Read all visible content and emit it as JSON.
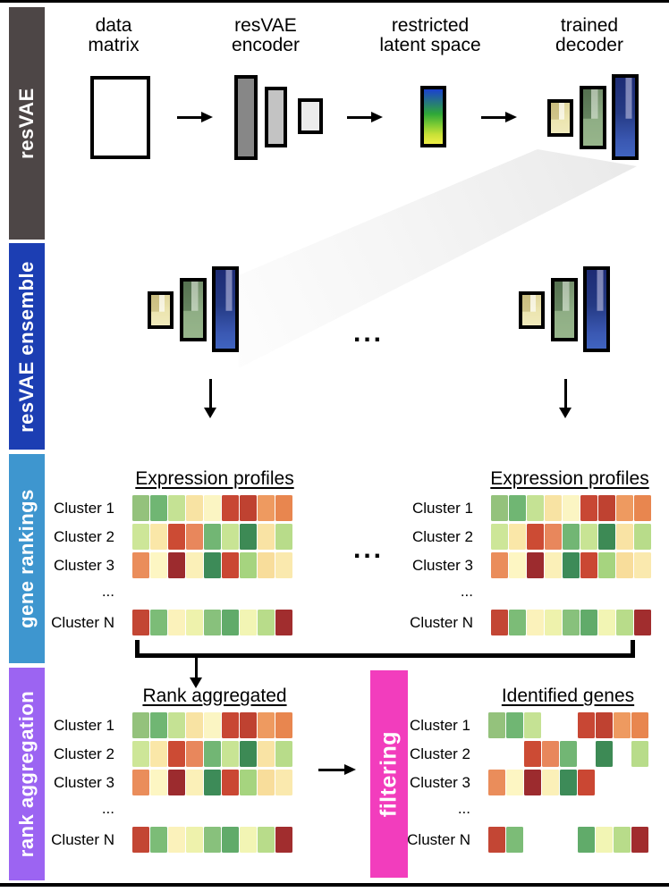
{
  "figure": {
    "sections": [
      {
        "label": "resVAE",
        "color": "#4d4646"
      },
      {
        "label": "resVAE ensemble",
        "color": "#1c3eb3"
      },
      {
        "label": "gene rankings",
        "color": "#3e96cf"
      },
      {
        "label": "rank aggregation",
        "color": "#9c64f2"
      }
    ]
  },
  "pipeline": {
    "data_matrix_label": "data\nmatrix",
    "encoder_label": "resVAE\nencoder",
    "latent_label": "restricted\nlatent space",
    "decoder_label": "trained\ndecoder"
  },
  "ensemble": {
    "ellipsis": "..."
  },
  "gene_rankings": {
    "left_title": "Expression profiles",
    "right_title": "Expression profiles",
    "ellipsis": "..."
  },
  "rank_aggregation": {
    "aggregated_title": "Rank aggregated",
    "filtering_label": "filtering",
    "identified_title": "Identified genes"
  },
  "heatmap": {
    "cluster_labels": [
      "Cluster 1",
      "Cluster 2",
      "Cluster 3",
      "...",
      "Cluster N"
    ],
    "ellipsis_label": "...",
    "rows": [
      [
        "#94c27c",
        "#70b673",
        "#c5e294",
        "#f8e3a3",
        "#fbf5c3",
        "#c84734",
        "#bf4231",
        "#ee9a60",
        "#e8864f"
      ],
      [
        "#cde698",
        "#fae7a8",
        "#cc4b34",
        "#e8875c",
        "#72b674",
        "#c8e494",
        "#3d8a55",
        "#f9e3a4",
        "#b8dc8a"
      ],
      [
        "#ea8d5b",
        "#fdf6c3",
        "#9c2b2e",
        "#fbf0b8",
        "#3d8b58",
        "#ca4733",
        "#a6d47f",
        "#f8dd9b",
        "#fae9ae"
      ],
      [
        "#c34634",
        "#7cbc77",
        "#fbf2bb",
        "#eef2ac",
        "#88c17c",
        "#61ab6a",
        "#f2f5b4",
        "#b8dc8a",
        "#a12d2e"
      ]
    ],
    "identified_mask": [
      [
        1,
        1,
        1,
        0,
        0,
        1,
        1,
        1,
        1
      ],
      [
        0,
        0,
        1,
        1,
        1,
        0,
        1,
        0,
        1
      ],
      [
        1,
        1,
        1,
        1,
        1,
        1,
        0,
        0,
        0
      ],
      [
        1,
        1,
        0,
        0,
        0,
        1,
        1,
        1,
        1
      ]
    ]
  },
  "colors": {
    "filtering_bar": "#f23dbd",
    "rule": "#000000"
  }
}
